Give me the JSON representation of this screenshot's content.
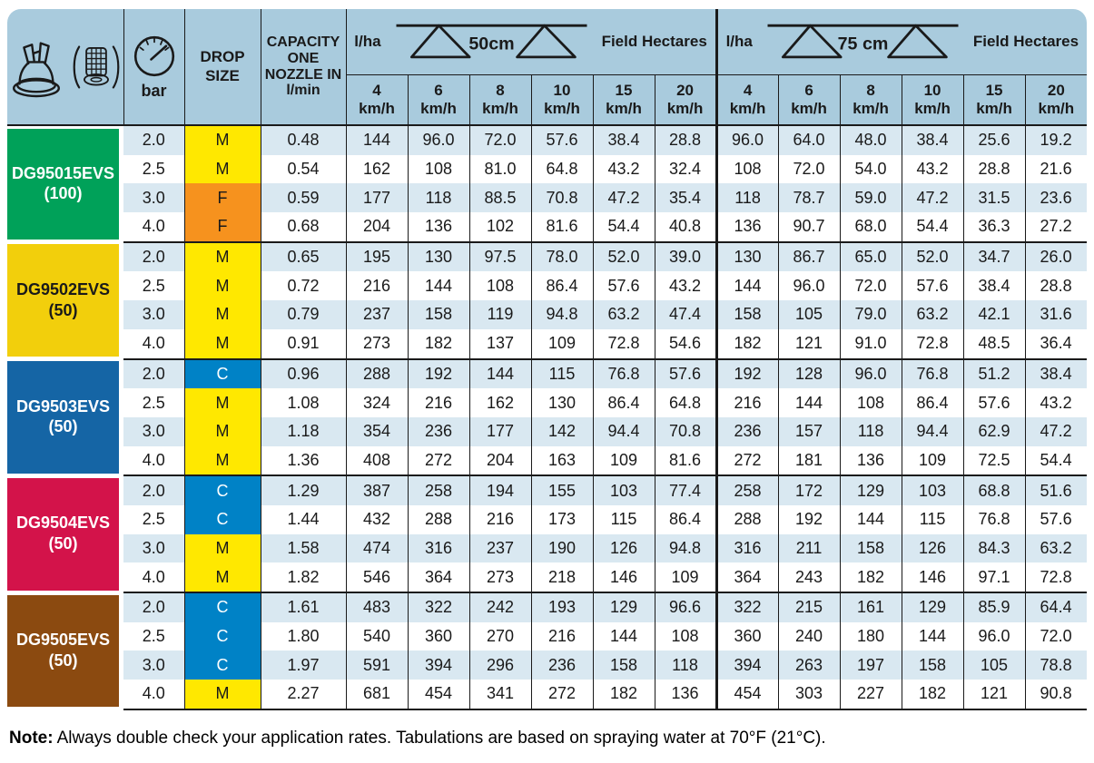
{
  "title": "Nozzle application rate table",
  "colors": {
    "header_bg": "#A9CBDD",
    "row_alt": "#D9E8F1",
    "row_plain": "#FFFFFF",
    "border": "#1A1A1A",
    "note_text": "#000000"
  },
  "drop_colors": {
    "M": {
      "bg": "#FFE800",
      "text": "#1A1A1A"
    },
    "F": {
      "bg": "#F6921E",
      "text": "#1A1A1A"
    },
    "C": {
      "bg": "#0082C6",
      "text": "#FFFFFF"
    }
  },
  "header": {
    "icons": [
      "nozzle-tip-icon",
      "strainer-icon"
    ],
    "pressure_label": "bar",
    "drop_size_label": "DROP SIZE",
    "capacity_label": "CAPACITY ONE NOZZLE IN l/min",
    "groups": [
      {
        "rate_label": "l/ha",
        "spacing_label": "50cm",
        "area_label": "Field Hectares"
      },
      {
        "rate_label": "l/ha",
        "spacing_label": "75 cm",
        "area_label": "Field Hectares"
      }
    ],
    "speeds": [
      "4",
      "6",
      "8",
      "10",
      "15",
      "20"
    ],
    "speed_unit": "km/h"
  },
  "nozzles": [
    {
      "name": "DG95015EVS",
      "sub": "(100)",
      "color": "#00A159",
      "text_color": "#FFFFFF",
      "rows": [
        {
          "bar": "2.0",
          "drop": "M",
          "capacity": "0.48",
          "v50": [
            "144",
            "96.0",
            "72.0",
            "57.6",
            "38.4",
            "28.8"
          ],
          "v75": [
            "96.0",
            "64.0",
            "48.0",
            "38.4",
            "25.6",
            "19.2"
          ]
        },
        {
          "bar": "2.5",
          "drop": "M",
          "capacity": "0.54",
          "v50": [
            "162",
            "108",
            "81.0",
            "64.8",
            "43.2",
            "32.4"
          ],
          "v75": [
            "108",
            "72.0",
            "54.0",
            "43.2",
            "28.8",
            "21.6"
          ]
        },
        {
          "bar": "3.0",
          "drop": "F",
          "capacity": "0.59",
          "v50": [
            "177",
            "118",
            "88.5",
            "70.8",
            "47.2",
            "35.4"
          ],
          "v75": [
            "118",
            "78.7",
            "59.0",
            "47.2",
            "31.5",
            "23.6"
          ]
        },
        {
          "bar": "4.0",
          "drop": "F",
          "capacity": "0.68",
          "v50": [
            "204",
            "136",
            "102",
            "81.6",
            "54.4",
            "40.8"
          ],
          "v75": [
            "136",
            "90.7",
            "68.0",
            "54.4",
            "36.3",
            "27.2"
          ]
        }
      ]
    },
    {
      "name": "DG9502EVS",
      "sub": "(50)",
      "color": "#F2CF0C",
      "text_color": "#1A1A1A",
      "rows": [
        {
          "bar": "2.0",
          "drop": "M",
          "capacity": "0.65",
          "v50": [
            "195",
            "130",
            "97.5",
            "78.0",
            "52.0",
            "39.0"
          ],
          "v75": [
            "130",
            "86.7",
            "65.0",
            "52.0",
            "34.7",
            "26.0"
          ]
        },
        {
          "bar": "2.5",
          "drop": "M",
          "capacity": "0.72",
          "v50": [
            "216",
            "144",
            "108",
            "86.4",
            "57.6",
            "43.2"
          ],
          "v75": [
            "144",
            "96.0",
            "72.0",
            "57.6",
            "38.4",
            "28.8"
          ]
        },
        {
          "bar": "3.0",
          "drop": "M",
          "capacity": "0.79",
          "v50": [
            "237",
            "158",
            "119",
            "94.8",
            "63.2",
            "47.4"
          ],
          "v75": [
            "158",
            "105",
            "79.0",
            "63.2",
            "42.1",
            "31.6"
          ]
        },
        {
          "bar": "4.0",
          "drop": "M",
          "capacity": "0.91",
          "v50": [
            "273",
            "182",
            "137",
            "109",
            "72.8",
            "54.6"
          ],
          "v75": [
            "182",
            "121",
            "91.0",
            "72.8",
            "48.5",
            "36.4"
          ]
        }
      ]
    },
    {
      "name": "DG9503EVS",
      "sub": "(50)",
      "color": "#1565A5",
      "text_color": "#FFFFFF",
      "rows": [
        {
          "bar": "2.0",
          "drop": "C",
          "capacity": "0.96",
          "v50": [
            "288",
            "192",
            "144",
            "115",
            "76.8",
            "57.6"
          ],
          "v75": [
            "192",
            "128",
            "96.0",
            "76.8",
            "51.2",
            "38.4"
          ]
        },
        {
          "bar": "2.5",
          "drop": "M",
          "capacity": "1.08",
          "v50": [
            "324",
            "216",
            "162",
            "130",
            "86.4",
            "64.8"
          ],
          "v75": [
            "216",
            "144",
            "108",
            "86.4",
            "57.6",
            "43.2"
          ]
        },
        {
          "bar": "3.0",
          "drop": "M",
          "capacity": "1.18",
          "v50": [
            "354",
            "236",
            "177",
            "142",
            "94.4",
            "70.8"
          ],
          "v75": [
            "236",
            "157",
            "118",
            "94.4",
            "62.9",
            "47.2"
          ]
        },
        {
          "bar": "4.0",
          "drop": "M",
          "capacity": "1.36",
          "v50": [
            "408",
            "272",
            "204",
            "163",
            "109",
            "81.6"
          ],
          "v75": [
            "272",
            "181",
            "136",
            "109",
            "72.5",
            "54.4"
          ]
        }
      ]
    },
    {
      "name": "DG9504EVS",
      "sub": "(50)",
      "color": "#D3134A",
      "text_color": "#FFFFFF",
      "rows": [
        {
          "bar": "2.0",
          "drop": "C",
          "capacity": "1.29",
          "v50": [
            "387",
            "258",
            "194",
            "155",
            "103",
            "77.4"
          ],
          "v75": [
            "258",
            "172",
            "129",
            "103",
            "68.8",
            "51.6"
          ]
        },
        {
          "bar": "2.5",
          "drop": "C",
          "capacity": "1.44",
          "v50": [
            "432",
            "288",
            "216",
            "173",
            "115",
            "86.4"
          ],
          "v75": [
            "288",
            "192",
            "144",
            "115",
            "76.8",
            "57.6"
          ]
        },
        {
          "bar": "3.0",
          "drop": "M",
          "capacity": "1.58",
          "v50": [
            "474",
            "316",
            "237",
            "190",
            "126",
            "94.8"
          ],
          "v75": [
            "316",
            "211",
            "158",
            "126",
            "84.3",
            "63.2"
          ]
        },
        {
          "bar": "4.0",
          "drop": "M",
          "capacity": "1.82",
          "v50": [
            "546",
            "364",
            "273",
            "218",
            "146",
            "109"
          ],
          "v75": [
            "364",
            "243",
            "182",
            "146",
            "97.1",
            "72.8"
          ]
        }
      ]
    },
    {
      "name": "DG9505EVS",
      "sub": "(50)",
      "color": "#8B4A10",
      "text_color": "#FFFFFF",
      "rows": [
        {
          "bar": "2.0",
          "drop": "C",
          "capacity": "1.61",
          "v50": [
            "483",
            "322",
            "242",
            "193",
            "129",
            "96.6"
          ],
          "v75": [
            "322",
            "215",
            "161",
            "129",
            "85.9",
            "64.4"
          ]
        },
        {
          "bar": "2.5",
          "drop": "C",
          "capacity": "1.80",
          "v50": [
            "540",
            "360",
            "270",
            "216",
            "144",
            "108"
          ],
          "v75": [
            "360",
            "240",
            "180",
            "144",
            "96.0",
            "72.0"
          ]
        },
        {
          "bar": "3.0",
          "drop": "C",
          "capacity": "1.97",
          "v50": [
            "591",
            "394",
            "296",
            "236",
            "158",
            "118"
          ],
          "v75": [
            "394",
            "263",
            "197",
            "158",
            "105",
            "78.8"
          ]
        },
        {
          "bar": "4.0",
          "drop": "M",
          "capacity": "2.27",
          "v50": [
            "681",
            "454",
            "341",
            "272",
            "182",
            "136"
          ],
          "v75": [
            "454",
            "303",
            "227",
            "182",
            "121",
            "90.8"
          ]
        }
      ]
    }
  ],
  "note": {
    "label": "Note:",
    "text": "Always double check your application rates. Tabulations are based on spraying water at 70°F (21°C)."
  }
}
